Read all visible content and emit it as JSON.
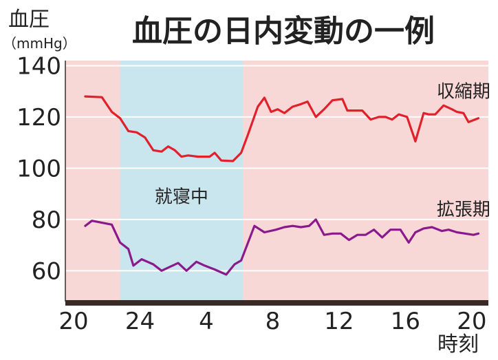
{
  "chart_data": {
    "type": "line",
    "title": "血圧の日内変動の一例",
    "ylabel": "血圧",
    "yunit": "（mmHg）",
    "xunit": "時刻",
    "ylim": [
      48,
      142
    ],
    "xlim": [
      19.5,
      45
    ],
    "yticks": [
      140,
      120,
      100,
      80,
      60
    ],
    "xtick_values": [
      20,
      24,
      28,
      32,
      36,
      40,
      44
    ],
    "xtick_labels": [
      "20",
      "24",
      "4",
      "8",
      "12",
      "16",
      "20"
    ],
    "grid": true,
    "colors": {
      "background": "#f8d7d7",
      "sleep_band": "#c9e5ee",
      "grid": "#ffffff",
      "axis": "#3a2a25",
      "systolic": "#e0202a",
      "diastolic": "#8a1a8c"
    },
    "shaded_region": {
      "label": "就寝中",
      "x_start": 22.8,
      "x_end": 30.2,
      "label_x": 26.5,
      "label_y": 89
    },
    "series": [
      {
        "name": "収縮期",
        "label_x": 43.5,
        "label_y": 130,
        "x": [
          20.7,
          21.7,
          22.3,
          22.8,
          23.3,
          23.8,
          24.3,
          24.8,
          25.3,
          25.7,
          26.1,
          26.5,
          26.9,
          27.5,
          28.2,
          28.5,
          28.9,
          29.6,
          30.1,
          30.5,
          31.1,
          31.5,
          31.9,
          32.3,
          32.7,
          33.2,
          33.7,
          34.1,
          34.6,
          35.1,
          35.6,
          36.2,
          36.5,
          37.1,
          37.4,
          37.9,
          38.4,
          38.8,
          39.2,
          39.6,
          40.1,
          40.6,
          41.1,
          41.4,
          41.8,
          42.3,
          42.8,
          43.1,
          43.5,
          43.8,
          44.4
        ],
        "values": [
          128,
          127.7,
          122,
          119.5,
          114.5,
          114,
          112,
          107,
          106.5,
          108.5,
          107,
          104.5,
          105,
          104.5,
          104.5,
          106,
          103,
          102.8,
          106,
          113,
          124,
          127.5,
          122,
          123,
          121.5,
          124,
          125,
          126,
          120,
          123,
          126.5,
          127,
          122.5,
          122.5,
          122.5,
          119,
          120,
          120,
          119,
          121,
          120,
          110.5,
          121.5,
          121,
          121,
          124.5,
          123,
          122,
          121.5,
          118,
          119.5
        ]
      },
      {
        "name": "拡張期",
        "label_x": 43.5,
        "label_y": 84,
        "x": [
          20.7,
          21.1,
          22.3,
          22.8,
          23.3,
          23.6,
          24.1,
          24.8,
          25.3,
          25.8,
          26.3,
          26.8,
          27.4,
          27.9,
          28.5,
          29.2,
          29.7,
          30.1,
          30.9,
          31.5,
          32.2,
          32.7,
          33.2,
          33.7,
          34.2,
          34.6,
          35.1,
          35.6,
          36.1,
          36.6,
          37.1,
          37.6,
          38.1,
          38.6,
          39.1,
          39.4,
          39.7,
          40.2,
          40.6,
          41.1,
          41.6,
          42.2,
          42.6,
          43.1,
          43.6,
          44.1,
          44.4
        ],
        "values": [
          77.5,
          79.5,
          78,
          71,
          68.5,
          62,
          64.5,
          62.5,
          60,
          61.5,
          63,
          60,
          63.5,
          62,
          60.5,
          58.5,
          62.5,
          64,
          77.5,
          75,
          76,
          77,
          77.5,
          77,
          77.5,
          80,
          74,
          74.5,
          74.5,
          72,
          74,
          74,
          76,
          73,
          76,
          76,
          76,
          71,
          75,
          76.5,
          77,
          75.5,
          76,
          75,
          74.5,
          74,
          74.5
        ]
      }
    ]
  }
}
